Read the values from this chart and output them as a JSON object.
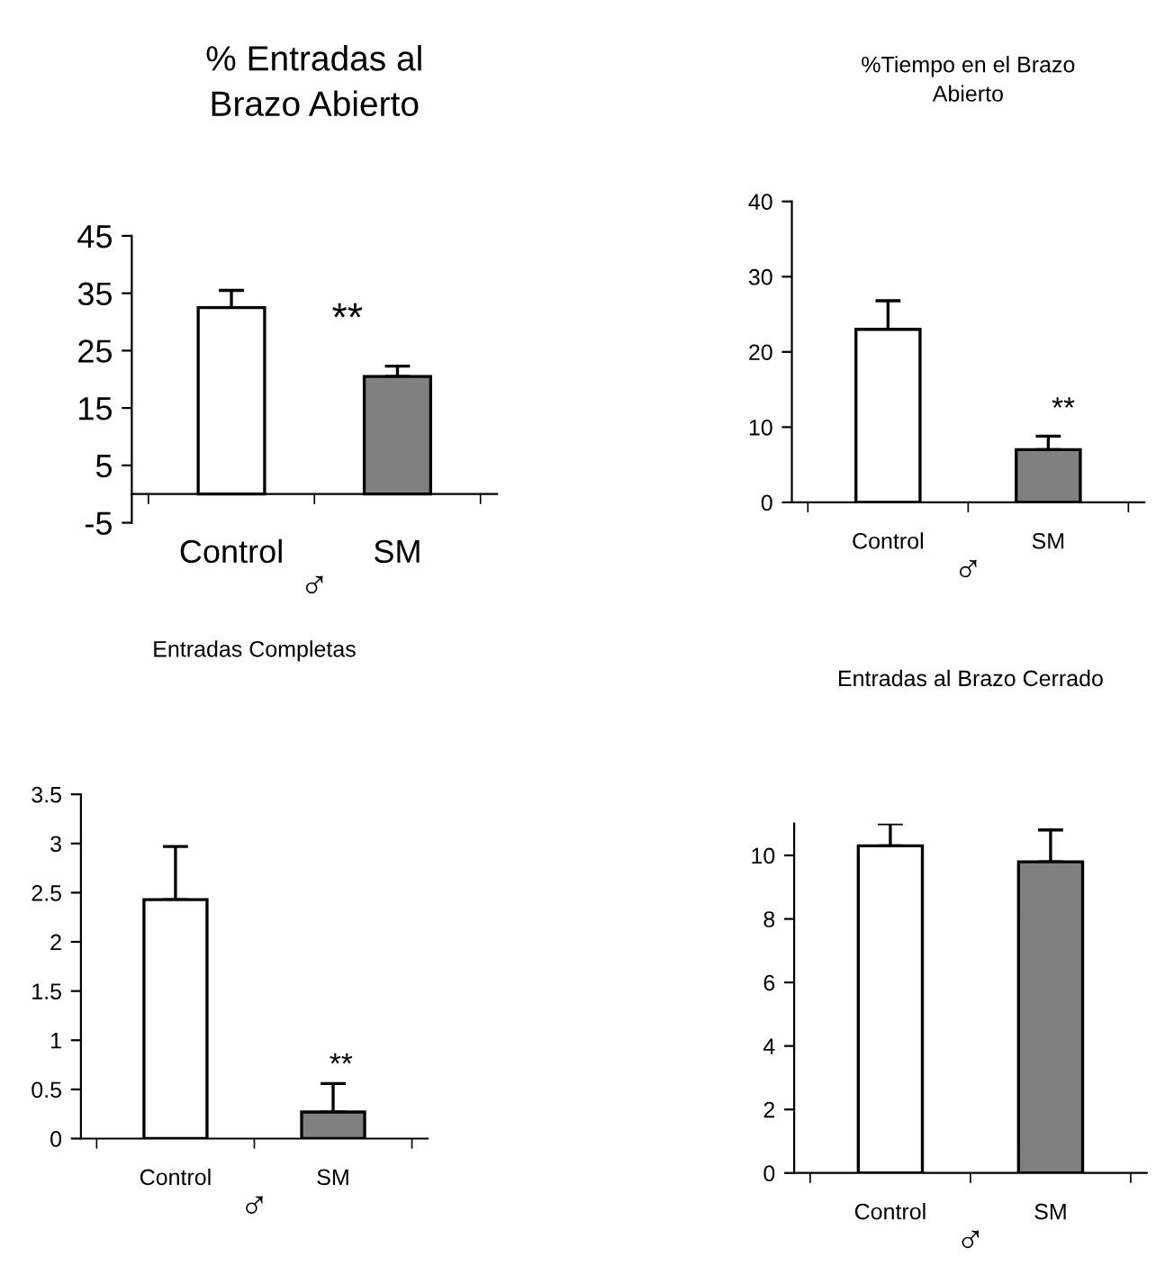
{
  "chart_data": [
    {
      "type": "bar",
      "title": "% Entradas al\nBrazo Abierto",
      "xlabel": "♂",
      "categories": [
        "Control",
        "SM"
      ],
      "values": [
        32.5,
        20.5
      ],
      "colors": [
        "#ffffff",
        "#808080"
      ],
      "errors": [
        [
          32.5,
          35.5
        ],
        [
          20.5,
          22.3
        ]
      ],
      "ylim": [
        -5,
        45
      ],
      "yticks": [
        -5,
        5,
        15,
        25,
        35,
        45
      ],
      "grid": false,
      "annotations": [
        "**"
      ]
    },
    {
      "type": "bar",
      "title": "%Tiempo en el Brazo\nAbierto",
      "xlabel": "♂",
      "categories": [
        "Control",
        "SM"
      ],
      "values": [
        23,
        7
      ],
      "colors": [
        "#ffffff",
        "#808080"
      ],
      "errors": [
        [
          23,
          26.8
        ],
        [
          7,
          8.8
        ]
      ],
      "ylim": [
        0,
        40
      ],
      "yticks": [
        0,
        10,
        20,
        30,
        40
      ],
      "grid": false,
      "annotations": [
        "**"
      ]
    },
    {
      "type": "bar",
      "title": "Entradas Completas",
      "xlabel": "♂",
      "categories": [
        "Control",
        "SM"
      ],
      "values": [
        2.43,
        0.27
      ],
      "colors": [
        "#ffffff",
        "#808080"
      ],
      "errors": [
        [
          2.43,
          2.97
        ],
        [
          0.27,
          0.56
        ]
      ],
      "ylim": [
        0,
        3.5
      ],
      "yticks": [
        0,
        0.5,
        1,
        1.5,
        2,
        2.5,
        3,
        3.5
      ],
      "grid": false,
      "annotations": [
        "**"
      ]
    },
    {
      "type": "bar",
      "title": "Entradas al Brazo Cerrado",
      "xlabel": "♂",
      "categories": [
        "Control",
        "SM"
      ],
      "values": [
        10.3,
        9.8
      ],
      "colors": [
        "#ffffff",
        "#808080"
      ],
      "errors": [
        [
          10.3,
          11.0
        ],
        [
          9.8,
          10.8
        ]
      ],
      "ylim": [
        0,
        11
      ],
      "yticks": [
        0,
        2,
        4,
        6,
        8,
        10
      ],
      "grid": false
    }
  ]
}
